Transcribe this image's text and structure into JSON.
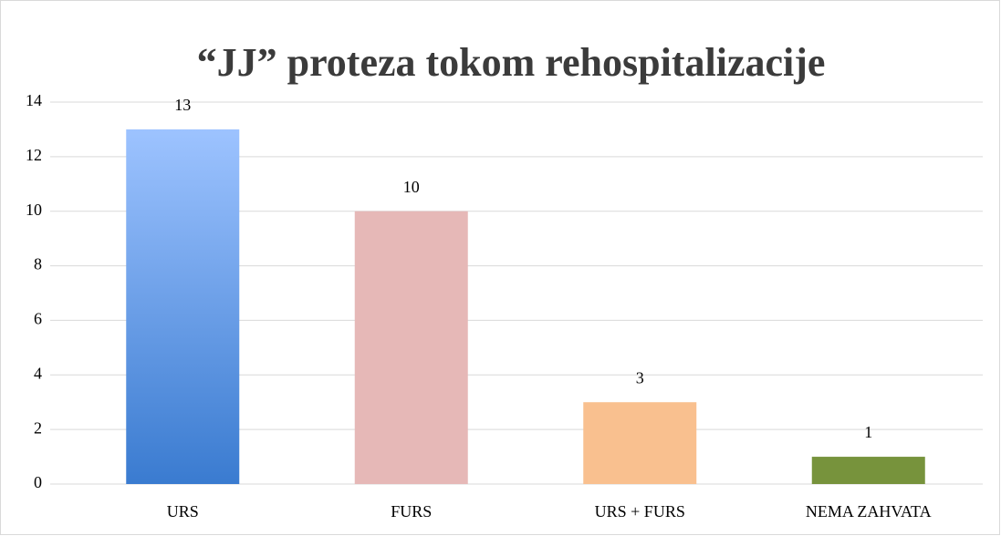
{
  "chart_data": {
    "type": "bar",
    "title": "“JJ” proteza tokom rehospitalizacije",
    "categories": [
      "URS",
      "FURS",
      "URS + FURS",
      "NEMA ZAHVATA"
    ],
    "values": [
      13,
      10,
      3,
      1
    ],
    "colors": [
      "#3a7bd0",
      "#e6b8b7",
      "#f9c08f",
      "#77933c"
    ],
    "gradient_top": "#9dc3ff",
    "ylim": [
      0,
      14
    ],
    "yticks": [
      0,
      2,
      4,
      6,
      8,
      10,
      12,
      14
    ],
    "grid": true
  }
}
